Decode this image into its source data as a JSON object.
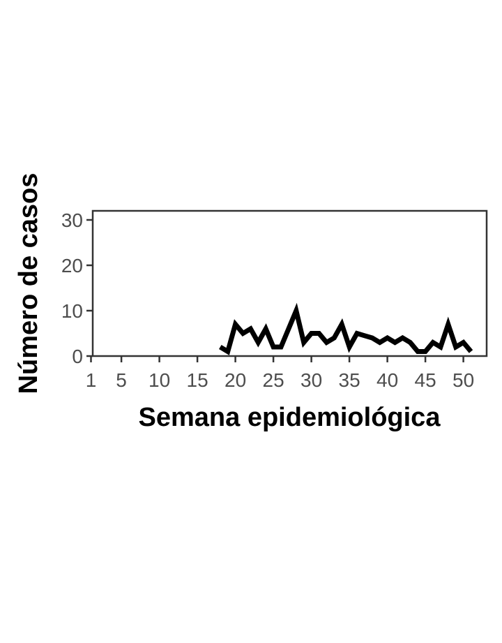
{
  "chart_data": {
    "type": "line",
    "title": "",
    "xlabel": "Semana epidemiológica",
    "ylabel": "Número de casos",
    "xlim": [
      1,
      52
    ],
    "ylim": [
      0,
      32
    ],
    "x_ticks": [
      1,
      5,
      10,
      15,
      20,
      25,
      30,
      35,
      40,
      45,
      50
    ],
    "y_ticks": [
      0,
      10,
      20,
      30
    ],
    "grid": false,
    "legend": "none",
    "colors": {
      "line": "#000000",
      "axis": "#333333",
      "tick_label": "#4d4d4d"
    },
    "series": [
      {
        "x": [
          18,
          19,
          20,
          21,
          22,
          23,
          24,
          25,
          26,
          27,
          28,
          29,
          30,
          31,
          32,
          33,
          34,
          35,
          36,
          37,
          38,
          39,
          40,
          41,
          42,
          43,
          44,
          45,
          46,
          47,
          48,
          49,
          50,
          51
        ],
        "values": [
          2,
          1,
          7,
          5,
          6,
          3,
          6,
          2,
          2,
          6,
          10,
          3,
          5,
          5,
          3,
          4,
          7,
          2,
          5,
          4.5,
          4,
          3,
          4,
          3,
          4,
          3,
          1,
          1,
          3,
          2,
          7,
          2,
          3,
          1
        ]
      }
    ]
  }
}
